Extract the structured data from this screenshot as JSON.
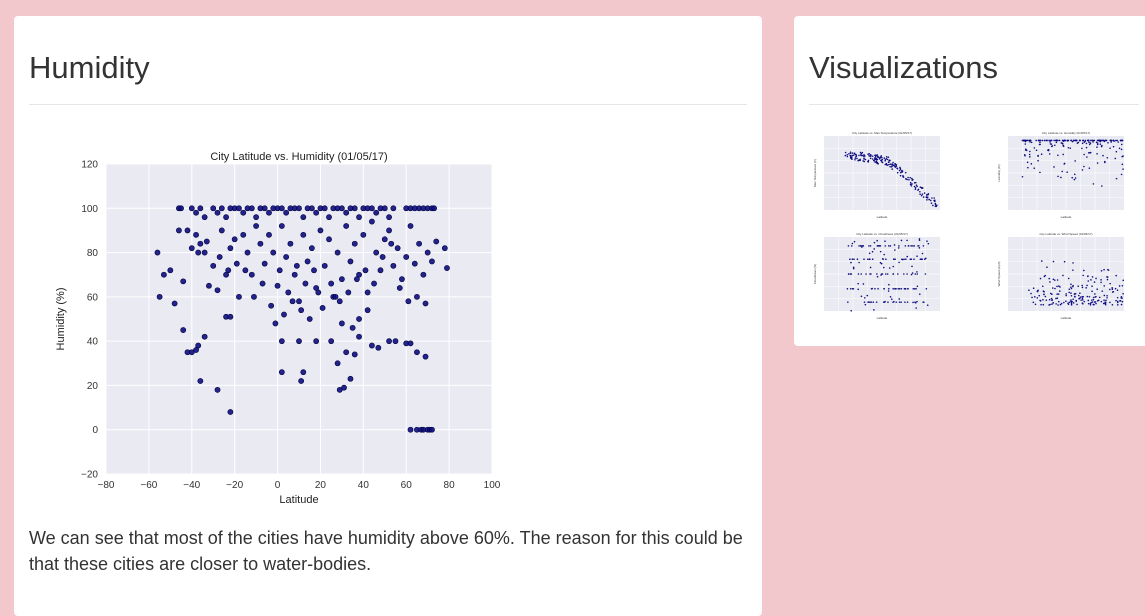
{
  "main": {
    "title": "Humidity",
    "description": "We can see that most of the cities have humidity above 60%. The reason for this could be that these cities are closer to water-bodies."
  },
  "sidebar": {
    "title": "Visualizations",
    "thumbnails": [
      {
        "name": "City Latitude vs. Max Temperature (01/05/17)",
        "ylabel": "Max Temperature (F)",
        "xlabel": "Latitude"
      },
      {
        "name": "City Latitude vs. Humidity (01/05/17)",
        "ylabel": "Humidity (%)",
        "xlabel": "Latitude"
      },
      {
        "name": "City Latitude vs. Cloudiness (01/05/17)",
        "ylabel": "Cloudiness (%)",
        "xlabel": "Latitude"
      },
      {
        "name": "City Latitude vs. Wind Speed (01/05/17)",
        "ylabel": "Wind Speed (mph)",
        "xlabel": "Latitude"
      }
    ]
  },
  "colors": {
    "page_bg": "#f2c8cc",
    "plot_bg": "#eaeaf2",
    "point": "#0d0d80",
    "point_edge": "#000040"
  },
  "chart_data": {
    "type": "scatter",
    "title": "City Latitude vs. Humidity (01/05/17)",
    "xlabel": "Latitude",
    "ylabel": "Humidity (%)",
    "xlim": [
      -80,
      100
    ],
    "ylim": [
      -20,
      120
    ],
    "xticks": [
      "−80",
      "−60",
      "−40",
      "−20",
      "0",
      "20",
      "40",
      "60",
      "80",
      "100"
    ],
    "yticks": [
      "−20",
      "0",
      "20",
      "40",
      "60",
      "80",
      "100",
      "120"
    ],
    "grid": true,
    "points": [
      [
        -46,
        100
      ],
      [
        -45,
        100
      ],
      [
        -40,
        100
      ],
      [
        -38,
        98
      ],
      [
        -36,
        100
      ],
      [
        -34,
        96
      ],
      [
        -30,
        100
      ],
      [
        -28,
        98
      ],
      [
        -26,
        100
      ],
      [
        -24,
        96
      ],
      [
        -22,
        100
      ],
      [
        -20,
        100
      ],
      [
        -18,
        100
      ],
      [
        -16,
        98
      ],
      [
        -14,
        100
      ],
      [
        -12,
        100
      ],
      [
        -10,
        96
      ],
      [
        -8,
        100
      ],
      [
        -6,
        100
      ],
      [
        -4,
        98
      ],
      [
        -2,
        100
      ],
      [
        0,
        100
      ],
      [
        2,
        100
      ],
      [
        4,
        98
      ],
      [
        6,
        100
      ],
      [
        8,
        100
      ],
      [
        10,
        100
      ],
      [
        12,
        96
      ],
      [
        14,
        100
      ],
      [
        16,
        100
      ],
      [
        18,
        98
      ],
      [
        20,
        100
      ],
      [
        22,
        100
      ],
      [
        24,
        96
      ],
      [
        26,
        100
      ],
      [
        28,
        100
      ],
      [
        30,
        100
      ],
      [
        32,
        98
      ],
      [
        34,
        100
      ],
      [
        36,
        100
      ],
      [
        38,
        96
      ],
      [
        40,
        100
      ],
      [
        42,
        100
      ],
      [
        44,
        100
      ],
      [
        46,
        98
      ],
      [
        48,
        100
      ],
      [
        50,
        100
      ],
      [
        52,
        96
      ],
      [
        54,
        100
      ],
      [
        60,
        100
      ],
      [
        62,
        100
      ],
      [
        64,
        100
      ],
      [
        66,
        100
      ],
      [
        68,
        100
      ],
      [
        70,
        100
      ],
      [
        72,
        100
      ],
      [
        73,
        100
      ],
      [
        -56,
        80
      ],
      [
        -55,
        60
      ],
      [
        -53,
        70
      ],
      [
        -50,
        72
      ],
      [
        -48,
        57
      ],
      [
        -46,
        90
      ],
      [
        -44,
        67
      ],
      [
        -42,
        90
      ],
      [
        -40,
        82
      ],
      [
        -38,
        88
      ],
      [
        -36,
        84
      ],
      [
        -34,
        80
      ],
      [
        -32,
        65
      ],
      [
        -30,
        74
      ],
      [
        -28,
        63
      ],
      [
        -26,
        90
      ],
      [
        -24,
        70
      ],
      [
        -22,
        82
      ],
      [
        -20,
        86
      ],
      [
        -18,
        60
      ],
      [
        -16,
        88
      ],
      [
        -14,
        80
      ],
      [
        -12,
        70
      ],
      [
        -10,
        92
      ],
      [
        -8,
        84
      ],
      [
        -6,
        75
      ],
      [
        -4,
        88
      ],
      [
        -2,
        80
      ],
      [
        0,
        65
      ],
      [
        2,
        92
      ],
      [
        4,
        78
      ],
      [
        6,
        84
      ],
      [
        8,
        70
      ],
      [
        10,
        58
      ],
      [
        12,
        88
      ],
      [
        14,
        76
      ],
      [
        16,
        82
      ],
      [
        18,
        64
      ],
      [
        20,
        90
      ],
      [
        22,
        74
      ],
      [
        24,
        86
      ],
      [
        26,
        60
      ],
      [
        28,
        80
      ],
      [
        30,
        68
      ],
      [
        32,
        92
      ],
      [
        34,
        76
      ],
      [
        36,
        84
      ],
      [
        38,
        70
      ],
      [
        40,
        88
      ],
      [
        42,
        62
      ],
      [
        44,
        94
      ],
      [
        46,
        80
      ],
      [
        48,
        72
      ],
      [
        50,
        86
      ],
      [
        52,
        90
      ],
      [
        54,
        74
      ],
      [
        56,
        82
      ],
      [
        58,
        68
      ],
      [
        60,
        78
      ],
      [
        62,
        92
      ],
      [
        64,
        75
      ],
      [
        66,
        84
      ],
      [
        68,
        70
      ],
      [
        70,
        80
      ],
      [
        72,
        76
      ],
      [
        74,
        85
      ],
      [
        78,
        82
      ],
      [
        79,
        73
      ],
      [
        -37,
        80
      ],
      [
        -33,
        85
      ],
      [
        -27,
        78
      ],
      [
        -23,
        72
      ],
      [
        -19,
        75
      ],
      [
        -15,
        72
      ],
      [
        -11,
        60
      ],
      [
        -7,
        66
      ],
      [
        -3,
        56
      ],
      [
        1,
        72
      ],
      [
        5,
        62
      ],
      [
        9,
        74
      ],
      [
        13,
        66
      ],
      [
        17,
        72
      ],
      [
        21,
        55
      ],
      [
        25,
        66
      ],
      [
        29,
        58
      ],
      [
        33,
        62
      ],
      [
        37,
        68
      ],
      [
        41,
        72
      ],
      [
        45,
        66
      ],
      [
        49,
        78
      ],
      [
        53,
        84
      ],
      [
        57,
        64
      ],
      [
        61,
        58
      ],
      [
        65,
        60
      ],
      [
        69,
        57
      ],
      [
        35,
        46
      ],
      [
        38,
        50
      ],
      [
        42,
        54
      ],
      [
        30,
        48
      ],
      [
        27,
        60
      ],
      [
        19,
        62
      ],
      [
        15,
        50
      ],
      [
        11,
        54
      ],
      [
        7,
        58
      ],
      [
        3,
        52
      ],
      [
        -1,
        48
      ],
      [
        -44,
        45
      ],
      [
        -42,
        35
      ],
      [
        -40,
        35
      ],
      [
        -38,
        36
      ],
      [
        -37,
        38
      ],
      [
        -36,
        22
      ],
      [
        -34,
        42
      ],
      [
        -28,
        18
      ],
      [
        -24,
        51
      ],
      [
        -22,
        51
      ],
      [
        -22,
        8
      ],
      [
        2,
        40
      ],
      [
        2,
        26
      ],
      [
        10,
        40
      ],
      [
        11,
        22
      ],
      [
        12,
        26
      ],
      [
        18,
        40
      ],
      [
        25,
        40
      ],
      [
        28,
        30
      ],
      [
        29,
        18
      ],
      [
        31,
        19
      ],
      [
        32,
        35
      ],
      [
        34,
        23
      ],
      [
        36,
        34
      ],
      [
        38,
        42
      ],
      [
        44,
        38
      ],
      [
        47,
        37
      ],
      [
        52,
        40
      ],
      [
        55,
        40
      ],
      [
        60,
        39
      ],
      [
        62,
        39
      ],
      [
        65,
        35
      ],
      [
        69,
        33
      ],
      [
        62,
        0
      ],
      [
        65,
        0
      ],
      [
        67,
        0
      ],
      [
        68,
        0
      ],
      [
        70,
        0
      ],
      [
        71,
        0
      ],
      [
        72,
        0
      ]
    ]
  }
}
